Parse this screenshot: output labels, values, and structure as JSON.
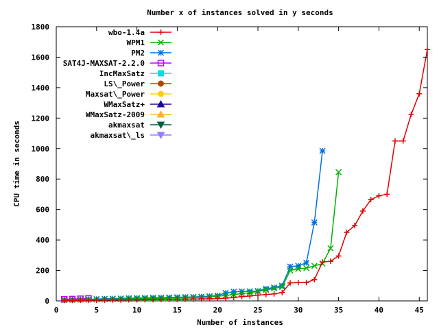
{
  "chart_data": {
    "type": "line",
    "title": "Number x of instances solved in y seconds",
    "xlabel": "Number of instances",
    "ylabel": "CPU time in seconds",
    "xlim": [
      0,
      46
    ],
    "ylim": [
      0,
      1800
    ],
    "xticks": [
      0,
      5,
      10,
      15,
      20,
      25,
      30,
      35,
      40,
      45
    ],
    "yticks": [
      0,
      200,
      400,
      600,
      800,
      1000,
      1200,
      1400,
      1600,
      1800
    ],
    "grid": false,
    "legend_position": "top-left",
    "series": [
      {
        "name": "wbo-1.4a",
        "color": "#e00000",
        "marker": "plus",
        "x": [
          1,
          2,
          3,
          4,
          5,
          6,
          7,
          8,
          9,
          10,
          11,
          12,
          13,
          14,
          15,
          16,
          17,
          18,
          19,
          20,
          21,
          22,
          23,
          24,
          25,
          26,
          27,
          28,
          29,
          30,
          31,
          32,
          33,
          34,
          35,
          36,
          37,
          38,
          39,
          40,
          41,
          42,
          43,
          44,
          45,
          46
        ],
        "y": [
          3,
          3,
          4,
          4,
          5,
          5,
          6,
          6,
          7,
          7,
          8,
          8,
          9,
          10,
          10,
          11,
          12,
          13,
          14,
          15,
          18,
          22,
          28,
          32,
          38,
          42,
          46,
          55,
          118,
          120,
          120,
          140,
          255,
          260,
          295,
          450,
          495,
          590,
          665,
          690,
          700,
          1050,
          1050,
          1225,
          1360,
          1650
        ]
      },
      {
        "name": "WPM1",
        "color": "#00b000",
        "marker": "x",
        "x": [
          1,
          2,
          3,
          4,
          5,
          6,
          7,
          8,
          9,
          10,
          11,
          12,
          13,
          14,
          15,
          16,
          17,
          18,
          19,
          20,
          21,
          22,
          23,
          24,
          25,
          26,
          27,
          28,
          29,
          30,
          31,
          32,
          33,
          34,
          35
        ],
        "y": [
          6,
          7,
          8,
          8,
          9,
          10,
          11,
          12,
          13,
          14,
          15,
          15,
          16,
          17,
          18,
          19,
          21,
          23,
          26,
          30,
          36,
          42,
          48,
          54,
          62,
          72,
          82,
          92,
          200,
          210,
          215,
          230,
          245,
          345,
          845
        ]
      },
      {
        "name": "PM2",
        "color": "#0070e0",
        "marker": "star",
        "x": [
          1,
          2,
          3,
          4,
          5,
          6,
          7,
          8,
          9,
          10,
          11,
          12,
          13,
          14,
          15,
          16,
          17,
          18,
          19,
          20,
          21,
          22,
          23,
          24,
          25,
          26,
          27,
          28,
          29,
          30,
          31,
          32,
          33
        ],
        "y": [
          8,
          9,
          10,
          11,
          12,
          14,
          15,
          16,
          18,
          19,
          20,
          21,
          22,
          23,
          24,
          25,
          26,
          28,
          31,
          35,
          52,
          60,
          62,
          63,
          65,
          80,
          88,
          100,
          225,
          230,
          250,
          515,
          985
        ]
      },
      {
        "name": "SAT4J-MAXSAT-2.2.0",
        "color": "#c000ff",
        "marker": "square",
        "x": [
          1,
          2,
          3,
          4
        ],
        "y": [
          10,
          12,
          14,
          16
        ]
      },
      {
        "name": "IncMaxSatz",
        "color": "#00e0e0",
        "marker": "filled-square",
        "x": [],
        "y": []
      },
      {
        "name": "LS\\_Power",
        "color": "#c04000",
        "marker": "filled-circle",
        "x": [],
        "y": []
      },
      {
        "name": "Maxsat\\_Power",
        "color": "#ffd000",
        "marker": "filled-circle",
        "x": [],
        "y": []
      },
      {
        "name": "WMaxSatz+",
        "color": "#2000a0",
        "marker": "filled-triangle-up",
        "x": [],
        "y": []
      },
      {
        "name": "WMaxSatz-2009",
        "color": "#ffb030",
        "marker": "filled-triangle-up",
        "x": [],
        "y": []
      },
      {
        "name": "akmaxsat",
        "color": "#006040",
        "marker": "filled-triangle-down",
        "x": [],
        "y": []
      },
      {
        "name": "akmaxsat\\_ls",
        "color": "#9080ff",
        "marker": "filled-triangle-down",
        "x": [],
        "y": []
      }
    ]
  }
}
